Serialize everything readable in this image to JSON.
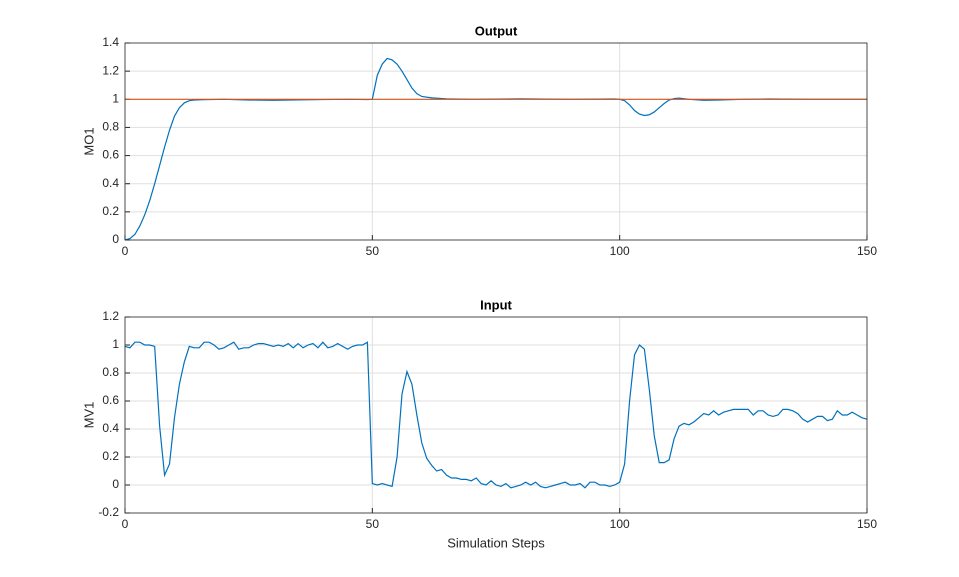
{
  "chart_data": [
    {
      "type": "line",
      "title": "Output",
      "ylabel": "MO1",
      "xlim": [
        0,
        150
      ],
      "xticks": [
        0,
        50,
        100,
        150
      ],
      "ylim": [
        0,
        1.4
      ],
      "yticks": [
        0,
        0.2,
        0.4,
        0.6,
        0.8,
        1,
        1.2,
        1.4
      ],
      "grid": true,
      "series": [
        {
          "color": "#0072bd",
          "x": [
            0,
            1,
            2,
            3,
            4,
            5,
            6,
            7,
            8,
            9,
            10,
            11,
            12,
            13,
            14,
            16,
            20,
            25,
            30,
            35,
            40,
            45,
            49,
            50,
            51,
            52,
            53,
            54,
            55,
            56,
            57,
            58,
            59,
            60,
            62,
            65,
            70,
            80,
            90,
            99,
            100,
            101,
            102,
            103,
            104,
            105,
            106,
            107,
            108,
            109,
            110,
            111,
            112,
            114,
            117,
            120,
            125,
            130,
            140,
            150
          ],
          "values": [
            0,
            0.01,
            0.04,
            0.1,
            0.18,
            0.28,
            0.4,
            0.53,
            0.66,
            0.78,
            0.88,
            0.94,
            0.975,
            0.99,
            0.995,
            0.997,
            1.0,
            0.995,
            0.993,
            0.996,
            0.998,
            1.0,
            0.998,
            1.0,
            1.17,
            1.25,
            1.29,
            1.28,
            1.25,
            1.2,
            1.14,
            1.08,
            1.04,
            1.02,
            1.01,
            1.003,
            1.0,
            1.003,
            1.0,
            1.002,
            1.0,
            0.99,
            0.96,
            0.92,
            0.895,
            0.885,
            0.89,
            0.91,
            0.94,
            0.97,
            0.995,
            1.005,
            1.008,
            1.0,
            0.993,
            0.995,
            1.0,
            1.002,
            1.0,
            1.0
          ]
        },
        {
          "color": "#d95319",
          "x": [
            0,
            150
          ],
          "values": [
            1,
            1
          ]
        }
      ]
    },
    {
      "type": "line",
      "title": "Input",
      "ylabel": "MV1",
      "xlabel": "Simulation Steps",
      "xlim": [
        0,
        150
      ],
      "xticks": [
        0,
        50,
        100,
        150
      ],
      "ylim": [
        -0.2,
        1.2
      ],
      "yticks": [
        -0.2,
        0,
        0.2,
        0.4,
        0.6,
        0.8,
        1,
        1.2
      ],
      "grid": true,
      "series": [
        {
          "color": "#0072bd",
          "x": [
            0,
            1,
            2,
            3,
            4,
            5,
            6,
            7,
            8,
            9,
            10,
            11,
            12,
            13,
            14,
            15,
            16,
            17,
            18,
            19,
            20,
            21,
            22,
            23,
            24,
            25,
            26,
            27,
            28,
            29,
            30,
            31,
            32,
            33,
            34,
            35,
            36,
            37,
            38,
            39,
            40,
            41,
            42,
            43,
            44,
            45,
            46,
            47,
            48,
            49,
            50,
            51,
            52,
            53,
            54,
            55,
            56,
            57,
            58,
            59,
            60,
            61,
            62,
            63,
            64,
            65,
            66,
            67,
            68,
            69,
            70,
            71,
            72,
            73,
            74,
            75,
            76,
            77,
            78,
            79,
            80,
            81,
            82,
            83,
            84,
            85,
            86,
            87,
            88,
            89,
            90,
            91,
            92,
            93,
            94,
            95,
            96,
            97,
            98,
            99,
            100,
            101,
            102,
            103,
            104,
            105,
            106,
            107,
            108,
            109,
            110,
            111,
            112,
            113,
            114,
            115,
            116,
            117,
            118,
            119,
            120,
            121,
            122,
            123,
            124,
            125,
            126,
            127,
            128,
            129,
            130,
            131,
            132,
            133,
            134,
            135,
            136,
            137,
            138,
            139,
            140,
            141,
            142,
            143,
            144,
            145,
            146,
            147,
            148,
            149,
            150
          ],
          "values": [
            0.99,
            0.98,
            1.02,
            1.02,
            1.0,
            1.0,
            0.99,
            0.42,
            0.07,
            0.15,
            0.48,
            0.72,
            0.88,
            0.99,
            0.98,
            0.98,
            1.02,
            1.02,
            1.0,
            0.97,
            0.98,
            1.0,
            1.02,
            0.97,
            0.98,
            0.98,
            1.0,
            1.01,
            1.01,
            1.0,
            0.99,
            1.0,
            0.99,
            1.01,
            0.98,
            1.01,
            0.98,
            1.0,
            1.01,
            0.98,
            1.02,
            0.98,
            0.99,
            1.01,
            0.99,
            0.97,
            0.99,
            1.0,
            1.0,
            1.02,
            0.01,
            0.0,
            0.01,
            0.0,
            -0.01,
            0.2,
            0.65,
            0.81,
            0.72,
            0.5,
            0.3,
            0.19,
            0.14,
            0.1,
            0.11,
            0.07,
            0.05,
            0.05,
            0.04,
            0.04,
            0.03,
            0.05,
            0.01,
            0.0,
            0.03,
            0.0,
            -0.01,
            0.01,
            -0.02,
            -0.01,
            0.0,
            0.02,
            0.0,
            0.02,
            -0.01,
            -0.02,
            -0.01,
            0.0,
            0.01,
            0.02,
            0.0,
            0.0,
            0.01,
            -0.02,
            0.02,
            0.02,
            0.0,
            0.0,
            -0.01,
            0.0,
            0.02,
            0.15,
            0.6,
            0.93,
            1.0,
            0.97,
            0.68,
            0.35,
            0.16,
            0.16,
            0.18,
            0.33,
            0.42,
            0.44,
            0.43,
            0.45,
            0.48,
            0.51,
            0.5,
            0.53,
            0.5,
            0.52,
            0.53,
            0.54,
            0.54,
            0.54,
            0.54,
            0.5,
            0.53,
            0.53,
            0.5,
            0.49,
            0.5,
            0.54,
            0.54,
            0.53,
            0.51,
            0.47,
            0.45,
            0.47,
            0.49,
            0.49,
            0.46,
            0.47,
            0.53,
            0.5,
            0.5,
            0.52,
            0.5,
            0.48,
            0.47
          ]
        }
      ]
    }
  ]
}
